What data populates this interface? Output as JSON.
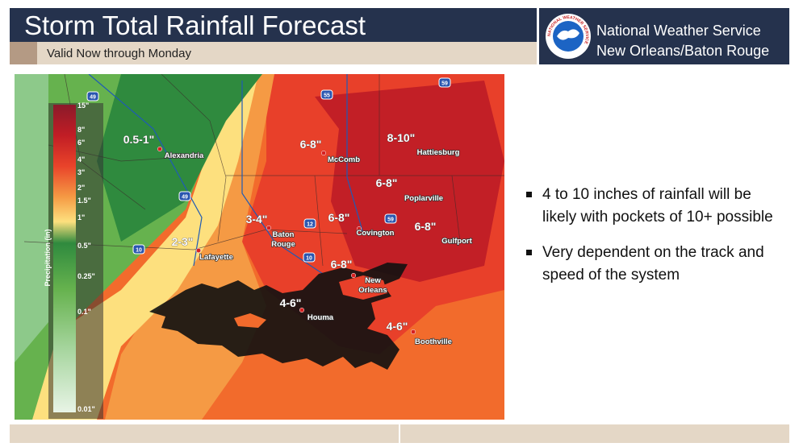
{
  "header": {
    "title": "Storm Total Rainfall Forecast",
    "subtitle": "Valid Now through Monday",
    "office": [
      "National Weather Service",
      "New Orleans/Baton Rouge"
    ],
    "logo_text": "NATIONAL WEATHER SERVICE"
  },
  "legend": {
    "title": "Precipitation (in)",
    "labels": [
      "15\"",
      "8\"",
      "6\"",
      "4\"",
      "3\"",
      "2\"",
      "1.5\"",
      "1\"",
      "0.5\"",
      "0.25\"",
      "0.1\"",
      "0.01\""
    ]
  },
  "map": {
    "amounts": [
      "0.5-1\"",
      "6-8\"",
      "8-10\"",
      "6-8\"",
      "6-8\"",
      "6-8\"",
      "3-4\"",
      "2-3\"",
      "6-8\"",
      "4-6\"",
      "4-6\""
    ],
    "cities": [
      [
        "Alexandria"
      ],
      [
        "McComb"
      ],
      [
        "Hattiesburg"
      ],
      [
        "Poplarville"
      ],
      [
        "Covington"
      ],
      [
        "Gulfport"
      ],
      [
        "Baton",
        "Rouge"
      ],
      [
        "Lafayette"
      ],
      [
        "New",
        "Orleans"
      ],
      [
        "Houma"
      ],
      [
        "Boothville"
      ]
    ],
    "highways": [
      "49",
      "55",
      "59",
      "49",
      "10",
      "12",
      "59",
      "10"
    ]
  },
  "bullets": [
    "4 to 10 inches of rainfall will be likely with pockets of 10+ possible",
    "Very dependent on the track and speed of the system"
  ]
}
